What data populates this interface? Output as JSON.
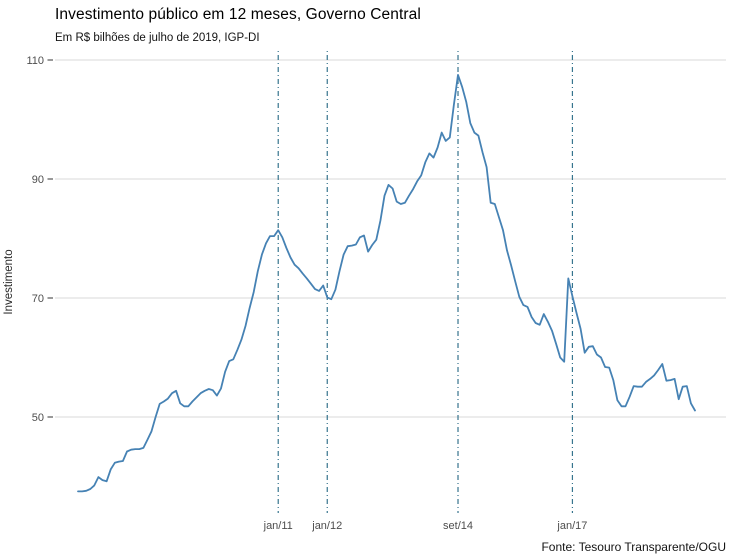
{
  "chart_data": {
    "type": "line",
    "title": "Investimento público em 12 meses, Governo Central",
    "subtitle": "Em R$ bilhões de julho de 2019, IGP-DI",
    "ylabel": "Investimento",
    "caption": "Fonte: Tesouro Transparente/OGU",
    "unit": "R$ bilhões de julho de 2019, IGP-DI",
    "frequency": "monthly",
    "x_start": "dez/2006",
    "x_end": "jul/2019",
    "ylim": [
      34,
      112
    ],
    "y_ticks": [
      50,
      70,
      90,
      110
    ],
    "grid": "horizontal-only",
    "legend": "none",
    "line_color": "#4682b4",
    "event_line_color": "#36748e",
    "event_line_style": "dot-dash",
    "x_axis_marks": [
      {
        "label": "jan/11",
        "month_index": 49
      },
      {
        "label": "jan/12",
        "month_index": 61
      },
      {
        "label": "set/14",
        "month_index": 93
      },
      {
        "label": "jan/17",
        "month_index": 121
      }
    ],
    "values": [
      37.5,
      37.5,
      37.6,
      37.9,
      38.5,
      39.9,
      39.4,
      39.2,
      41.2,
      42.3,
      42.5,
      42.6,
      44.2,
      44.5,
      44.6,
      44.6,
      44.8,
      46.2,
      47.6,
      50.0,
      52.2,
      52.6,
      53.1,
      54.0,
      54.4,
      52.3,
      51.8,
      51.8,
      52.6,
      53.3,
      54.0,
      54.4,
      54.7,
      54.5,
      53.6,
      54.8,
      57.6,
      59.4,
      59.7,
      61.3,
      63.0,
      65.3,
      68.3,
      71.0,
      74.5,
      77.3,
      79.2,
      80.4,
      80.4,
      81.4,
      80.2,
      78.4,
      76.8,
      75.6,
      75.0,
      74.1,
      73.3,
      72.4,
      71.5,
      71.2,
      72.1,
      70.1,
      69.8,
      71.4,
      74.5,
      77.3,
      78.7,
      78.8,
      79.0,
      80.2,
      80.5,
      77.8,
      78.9,
      79.8,
      83.0,
      87.2,
      89.0,
      88.4,
      86.2,
      85.8,
      86.0,
      87.2,
      88.3,
      89.6,
      90.6,
      92.8,
      94.3,
      93.6,
      95.3,
      97.8,
      96.4,
      97.0,
      102.5,
      107.5,
      105.5,
      103.0,
      99.4,
      97.8,
      97.3,
      94.5,
      92.0,
      86.0,
      85.8,
      83.6,
      81.4,
      78.0,
      75.5,
      72.8,
      70.2,
      68.8,
      68.5,
      66.8,
      65.8,
      65.5,
      67.3,
      66.0,
      64.5,
      62.3,
      60.0,
      59.3,
      73.3,
      70.3,
      67.5,
      64.8,
      60.8,
      61.8,
      61.9,
      60.5,
      60.0,
      58.4,
      58.3,
      56.2,
      52.8,
      51.8,
      51.8,
      53.4,
      55.2,
      55.1,
      55.1,
      55.9,
      56.4,
      57.0,
      57.9,
      58.9,
      56.1,
      56.2,
      56.4,
      53.0,
      55.1,
      55.2,
      52.3,
      51.1
    ]
  }
}
